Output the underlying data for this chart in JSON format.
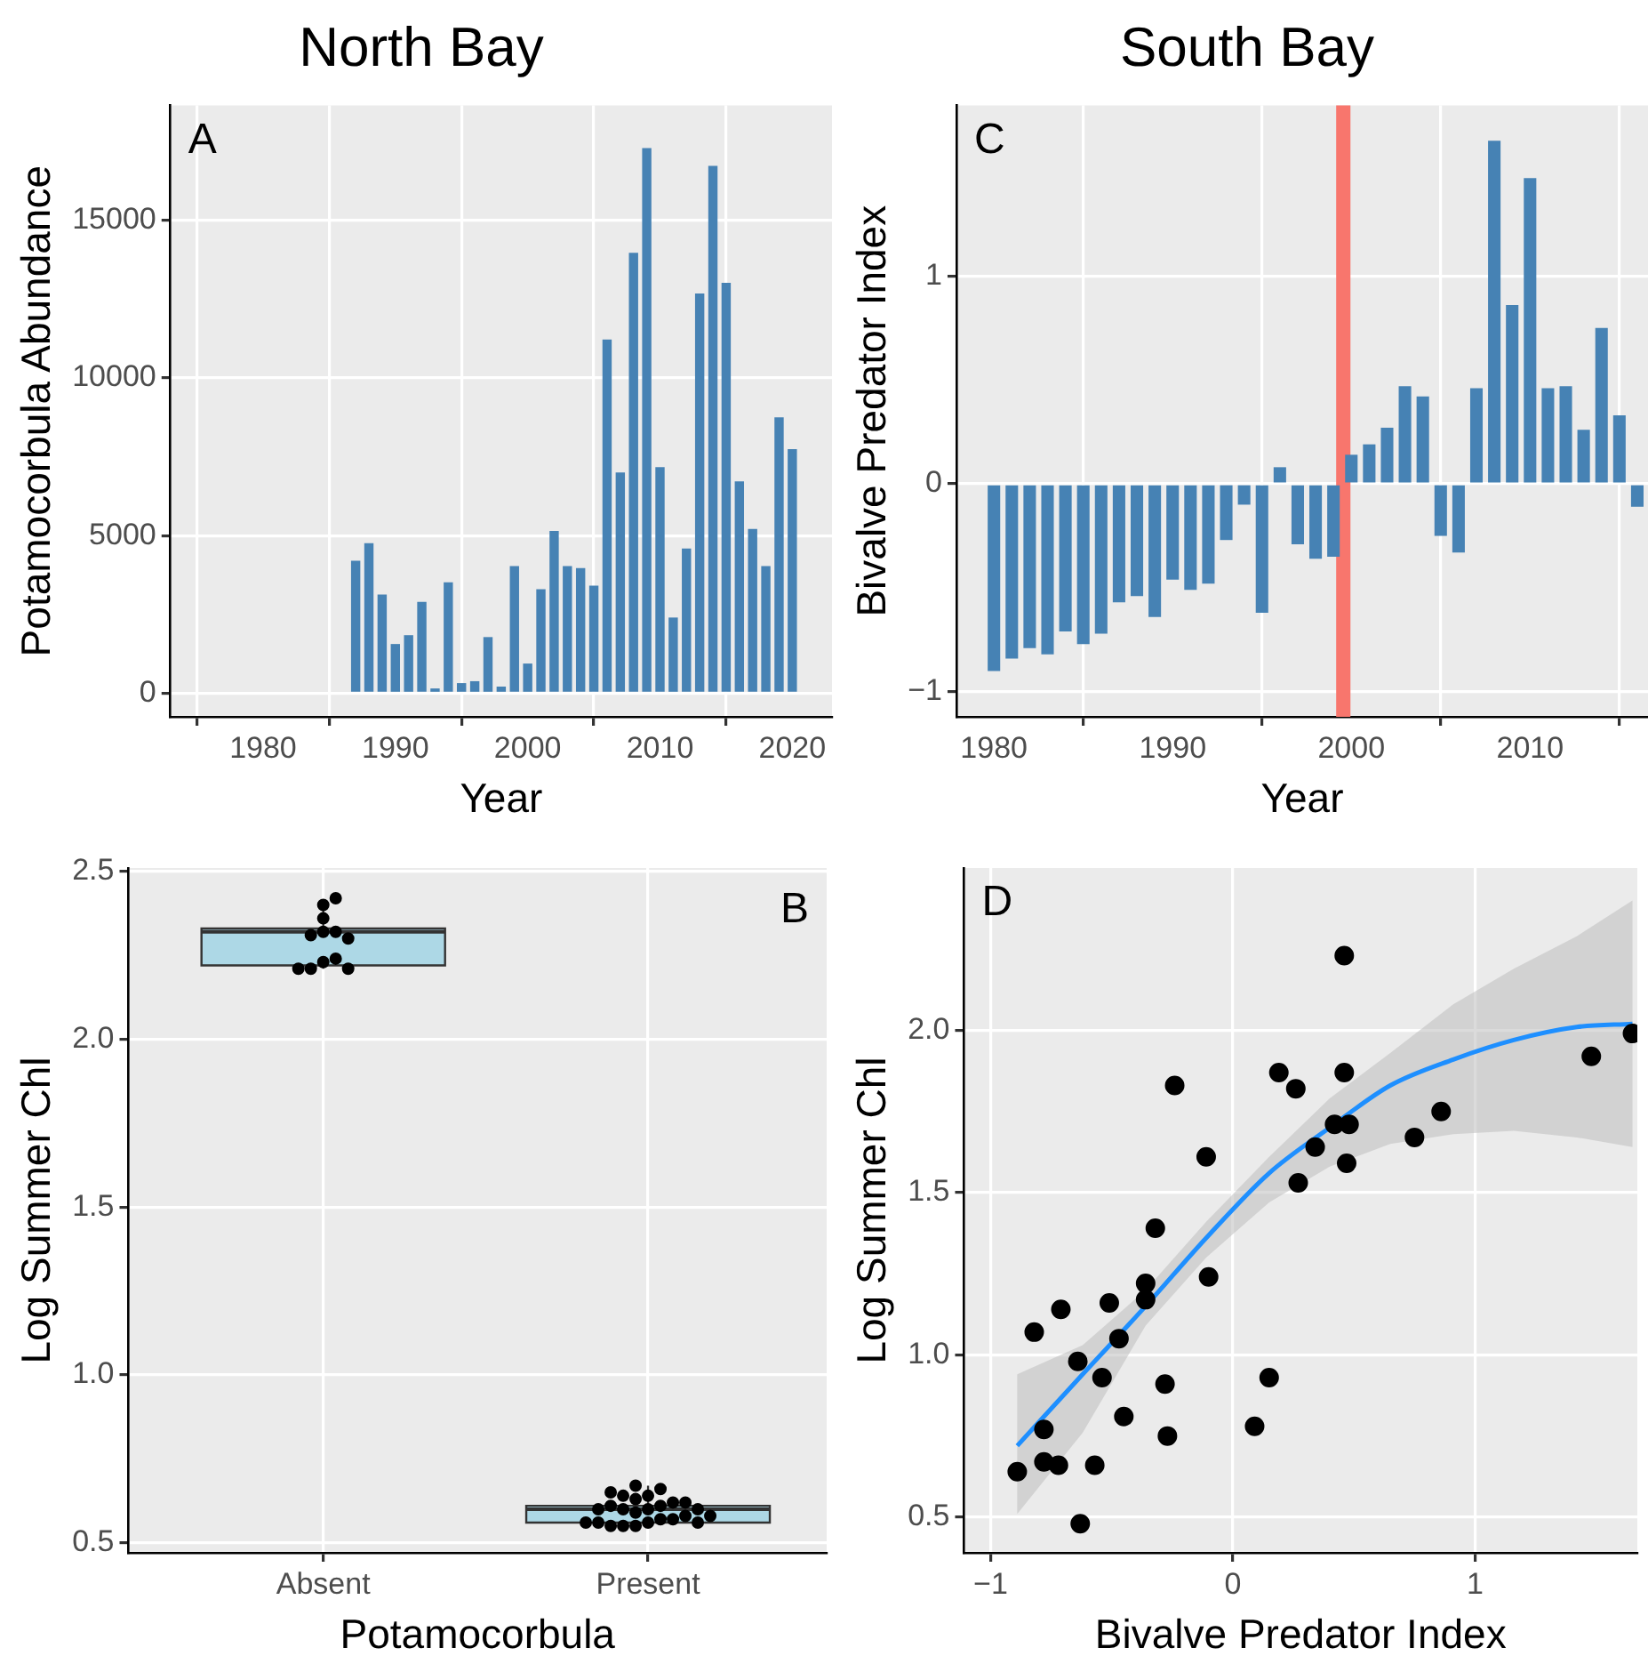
{
  "chart_data": [
    {
      "type": "bar",
      "title": "North Bay",
      "xlabel": "Year",
      "ylabel": "Potamocorbula Abundance",
      "annotations": [
        "A"
      ],
      "x": [
        1976,
        1977,
        1978,
        1979,
        1980,
        1981,
        1982,
        1983,
        1984,
        1985,
        1986,
        1987,
        1988,
        1989,
        1990,
        1991,
        1992,
        1993,
        1994,
        1995,
        1996,
        1997,
        1998,
        1999,
        2000,
        2001,
        2002,
        2003,
        2004,
        2005,
        2006,
        2007,
        2008,
        2009,
        2010,
        2011,
        2012,
        2013,
        2014,
        2015,
        2016,
        2017,
        2018,
        2019,
        2020
      ],
      "series": [
        {
          "color": "#4682b4",
          "values": [
            0,
            0,
            0,
            0,
            0,
            0,
            0,
            0,
            0,
            0,
            0,
            4200,
            4760,
            3130,
            1560,
            1840,
            2900,
            150,
            3520,
            320,
            380,
            1780,
            210,
            4030,
            940,
            3300,
            5150,
            4030,
            3970,
            3410,
            11220,
            7000,
            13970,
            17290,
            7170,
            2400,
            4590,
            12680,
            16730,
            13020,
            6720,
            5210,
            4030,
            8750,
            7740
          ]
        }
      ],
      "xlim": [
        1973,
        2023
      ],
      "xticks": [
        1980,
        1990,
        2000,
        2010,
        2020
      ],
      "ylim": [
        -750,
        18650
      ],
      "yticks": [
        0,
        5000,
        10000,
        15000
      ],
      "grid": true,
      "legend": false
    },
    {
      "type": "bar",
      "title": "South Bay",
      "xlabel": "Year",
      "ylabel": "Bivalve Predator Index",
      "annotations": [
        "C"
      ],
      "x": [
        1980,
        1981,
        1982,
        1983,
        1984,
        1985,
        1986,
        1987,
        1988,
        1989,
        1990,
        1991,
        1992,
        1993,
        1994,
        1995,
        1996,
        1997,
        1998,
        1999,
        2000,
        2001,
        2002,
        2003,
        2004,
        2005,
        2006,
        2007,
        2008,
        2009,
        2010,
        2011,
        2012,
        2013,
        2014,
        2015,
        2016
      ],
      "series": [
        {
          "color": "#4682b4",
          "values": [
            -0.9,
            -0.84,
            -0.79,
            -0.82,
            -0.71,
            -0.77,
            -0.72,
            -0.57,
            -0.54,
            -0.64,
            -0.46,
            -0.51,
            -0.48,
            -0.27,
            -0.1,
            -0.62,
            0.08,
            -0.29,
            -0.36,
            -0.35,
            0.14,
            0.19,
            0.27,
            0.47,
            0.42,
            -0.25,
            -0.33,
            0.46,
            1.65,
            0.86,
            1.47,
            0.46,
            0.47,
            0.26,
            0.75,
            0.33,
            -0.11
          ]
        }
      ],
      "bands": [
        {
          "axis": "x",
          "from": 1999.15,
          "to": 1999.95,
          "color": "#f8766d"
        }
      ],
      "xlim": [
        1977.9,
        2016.6
      ],
      "xticks": [
        1980,
        1990,
        2000,
        2010
      ],
      "ylim": [
        -1.12,
        1.82
      ],
      "yticks": [
        {
          "value": -1,
          "label": "−1"
        },
        0,
        1
      ],
      "grid": true,
      "legend": false
    },
    {
      "type": "box",
      "xlabel": "Potamocorbula",
      "ylabel": "Log Summer Chl",
      "annotations": [
        "B"
      ],
      "categories": [
        "Absent",
        "Present"
      ],
      "color": "#add8e6",
      "boxes": [
        {
          "low": 2.21,
          "q1": 2.22,
          "median": 2.32,
          "q3": 2.33,
          "high": 2.41
        },
        {
          "low": 0.55,
          "q1": 0.56,
          "median": 0.6,
          "q3": 0.61,
          "high": 0.67
        }
      ],
      "series": [
        {
          "type": "scatter",
          "color": "#000000",
          "marker": "circle",
          "x": [
            "Absent",
            "Absent",
            "Absent",
            "Absent",
            "Absent",
            "Absent",
            "Absent",
            "Absent",
            "Absent",
            "Absent",
            "Absent",
            "Absent",
            "Present",
            "Present",
            "Present",
            "Present",
            "Present",
            "Present",
            "Present",
            "Present",
            "Present",
            "Present",
            "Present",
            "Present",
            "Present",
            "Present",
            "Present",
            "Present",
            "Present",
            "Present",
            "Present",
            "Present",
            "Present",
            "Present",
            "Present",
            "Present",
            "Present",
            "Present"
          ],
          "values": [
            2.36,
            2.32,
            2.23,
            2.4,
            2.32,
            2.31,
            2.24,
            2.21,
            2.42,
            2.21,
            2.21,
            2.3,
            0.6,
            0.61,
            0.57,
            0.56,
            0.55,
            0.64,
            0.57,
            0.63,
            0.62,
            0.66,
            0.6,
            0.58,
            0.62,
            0.55,
            0.67,
            0.59,
            0.64,
            0.65,
            0.55,
            0.56,
            0.56,
            0.61,
            0.6,
            0.58,
            0.56,
            0.6
          ]
        }
      ],
      "ylim": [
        0.47,
        2.51
      ],
      "yticks": [
        {
          "value": 0.5,
          "label": "0.5"
        },
        {
          "value": 1,
          "label": "1.0"
        },
        {
          "value": 1.5,
          "label": "1.5"
        },
        {
          "value": 2,
          "label": "2.0"
        },
        {
          "value": 2.5,
          "label": "2.5"
        }
      ],
      "grid": true,
      "legend": false
    },
    {
      "type": "scatter",
      "xlabel": "Bivalve Predator Index",
      "ylabel": "Log Summer Chl",
      "annotations": [
        "D"
      ],
      "series": [
        {
          "color": "#000000",
          "marker": "circle",
          "x": [
            -0.89,
            -0.82,
            -0.71,
            -0.78,
            -0.78,
            -0.72,
            -0.57,
            -0.63,
            -0.64,
            -0.54,
            -0.51,
            -0.47,
            -0.45,
            -0.36,
            -0.36,
            -0.32,
            -0.28,
            -0.27,
            -0.24,
            -0.11,
            -0.1,
            0.09,
            0.15,
            0.19,
            0.26,
            0.27,
            0.34,
            0.42,
            0.46,
            0.46,
            0.48,
            0.47,
            0.75,
            0.86,
            1.48,
            1.65
          ],
          "values": [
            0.64,
            1.07,
            1.14,
            0.77,
            0.67,
            0.66,
            0.66,
            0.48,
            0.98,
            0.93,
            1.16,
            1.05,
            0.81,
            1.17,
            1.22,
            1.39,
            0.91,
            0.75,
            1.83,
            1.61,
            1.24,
            0.78,
            0.93,
            1.87,
            1.82,
            1.53,
            1.64,
            1.71,
            2.23,
            1.87,
            1.71,
            1.59,
            1.67,
            1.75,
            1.92,
            1.99
          ]
        },
        {
          "type": "line",
          "color": "#1e8fff",
          "marker": "none",
          "x": [
            -0.89,
            -0.62,
            -0.36,
            -0.11,
            0.15,
            0.4,
            0.65,
            0.91,
            1.16,
            1.42,
            1.65
          ],
          "values": [
            0.72,
            0.94,
            1.15,
            1.36,
            1.56,
            1.7,
            1.83,
            1.91,
            1.97,
            2.01,
            2.02
          ],
          "lower": [
            0.51,
            0.76,
            1.09,
            1.3,
            1.47,
            1.58,
            1.65,
            1.68,
            1.69,
            1.67,
            1.64
          ],
          "upper": [
            0.94,
            1.03,
            1.2,
            1.41,
            1.61,
            1.79,
            1.93,
            2.08,
            2.19,
            2.29,
            2.4
          ]
        }
      ],
      "xlim": [
        -1.11,
        1.67
      ],
      "xticks": [
        {
          "value": -1,
          "label": "−1"
        },
        0,
        1
      ],
      "ylim": [
        0.39,
        2.5
      ],
      "yticks": [
        {
          "value": 0.5,
          "label": "0.5"
        },
        {
          "value": 1,
          "label": "1.0"
        },
        {
          "value": 1.5,
          "label": "1.5"
        },
        {
          "value": 2,
          "label": "2.0"
        }
      ],
      "grid": true,
      "legend": false
    }
  ]
}
